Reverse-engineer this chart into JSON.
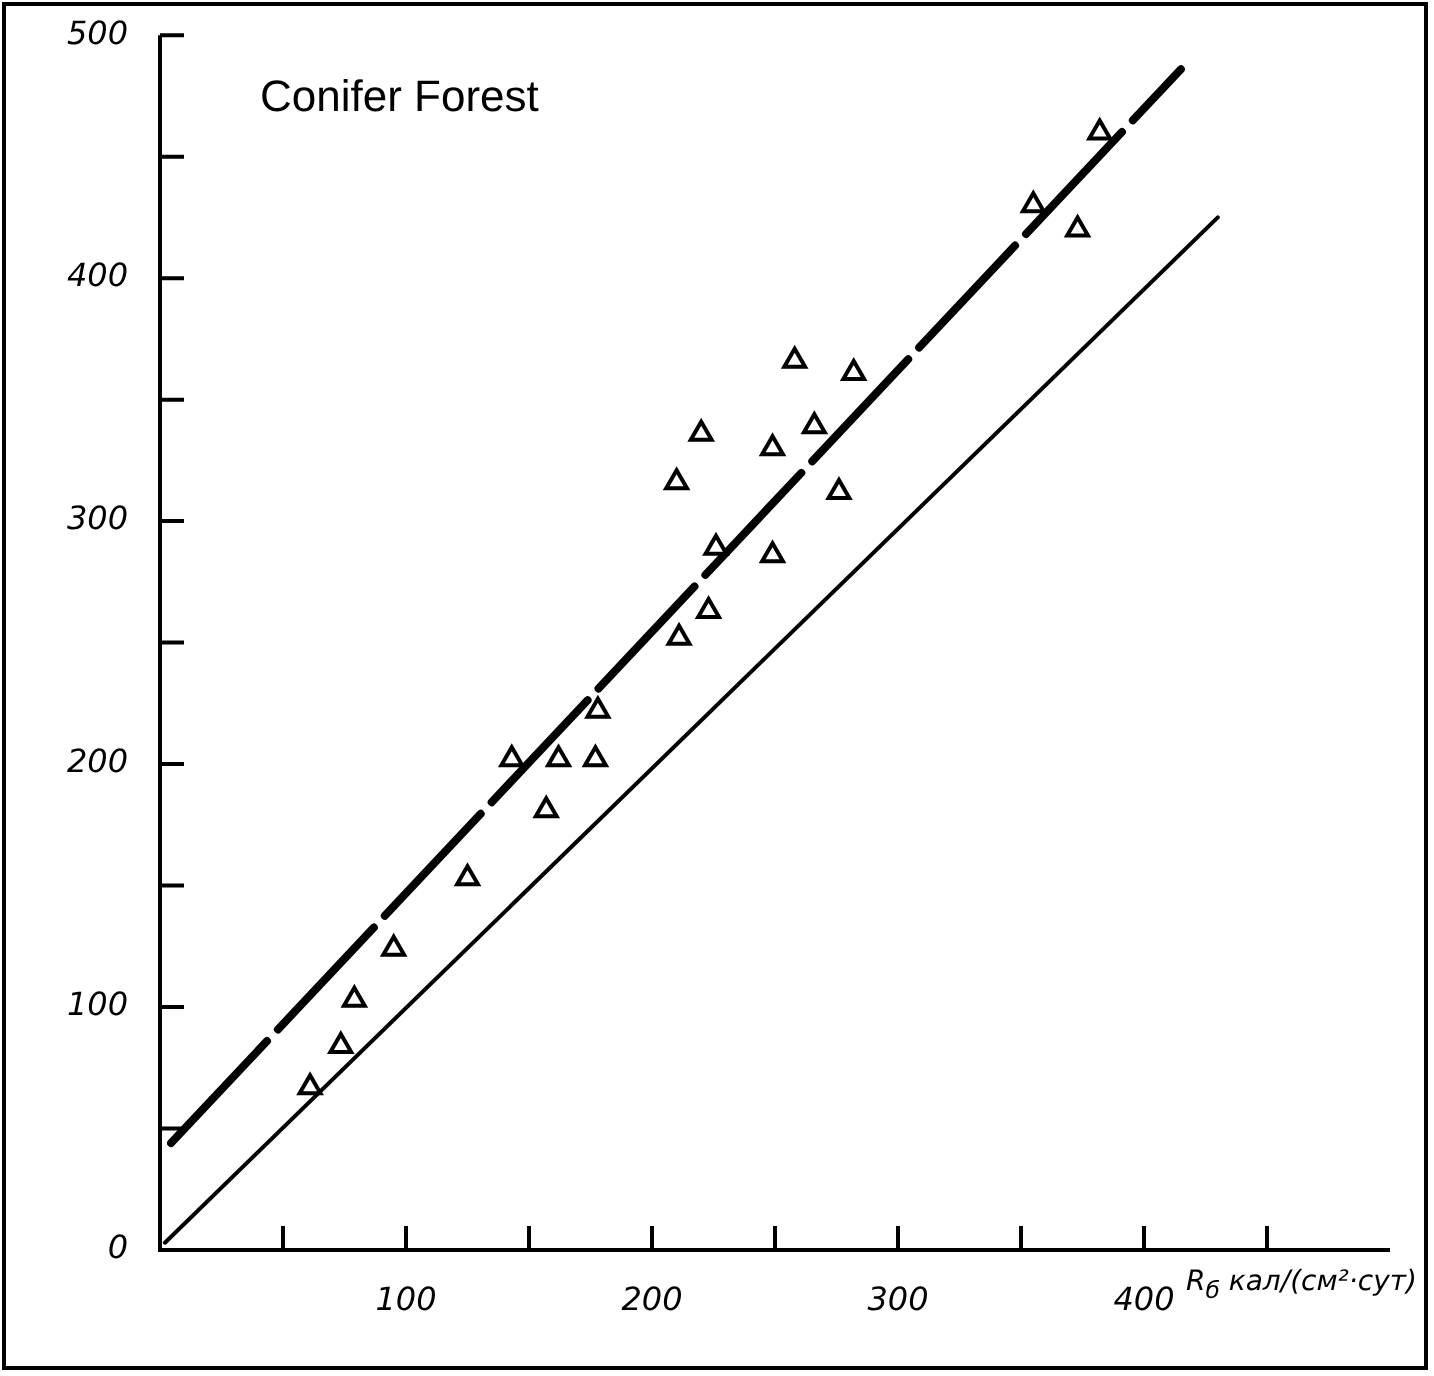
{
  "chart_data": {
    "type": "scatter",
    "title": "Conifer Forest",
    "xlabel": "R$_{б}$ кал/(см²·сут)",
    "xlim": [
      0,
      500
    ],
    "ylim": [
      0,
      500
    ],
    "xticks": [
      {
        "value": 50,
        "label": null
      },
      100,
      {
        "value": 150,
        "label": null
      },
      200,
      {
        "value": 250,
        "label": null
      },
      300,
      {
        "value": 350,
        "label": null
      },
      400,
      {
        "value": 450,
        "label": null
      }
    ],
    "yticks": [
      0,
      {
        "value": 50,
        "label": null
      },
      100,
      {
        "value": 150,
        "label": null
      },
      200,
      {
        "value": 250,
        "label": null
      },
      300,
      {
        "value": 350,
        "label": null
      },
      400,
      {
        "value": 450,
        "label": null
      },
      500
    ],
    "marker": "triangle",
    "series": [
      {
        "type": "scatter",
        "color": "#000000",
        "x": [
          61,
          73.5,
          79,
          95,
          125,
          143,
          157,
          162,
          177,
          178,
          210,
          211,
          220,
          223,
          226,
          249,
          249,
          258,
          266,
          276,
          282,
          355,
          373,
          382
        ],
        "values": [
          67,
          84,
          103,
          124,
          153,
          202,
          181,
          202,
          202,
          222,
          316,
          252,
          336,
          263,
          289,
          330,
          286,
          366,
          339,
          312,
          361,
          430,
          420,
          460
        ]
      },
      {
        "type": "line",
        "color": "#000000",
        "marker": "none",
        "line_style": "dashed",
        "x": [
          4.5,
          415
        ],
        "values": [
          44,
          486
        ]
      },
      {
        "type": "line",
        "color": "#000000",
        "marker": "none",
        "line_style": "solid",
        "x": [
          2,
          430
        ],
        "values": [
          3,
          425
        ]
      }
    ]
  }
}
